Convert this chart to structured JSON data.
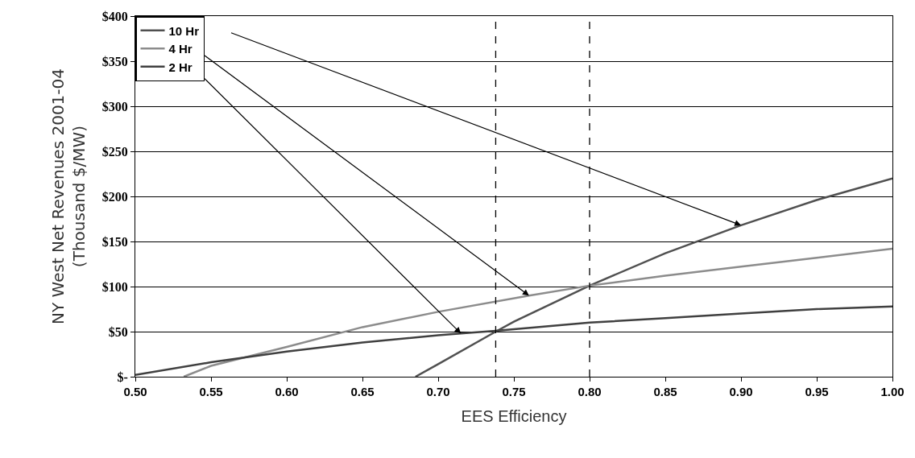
{
  "chart_data": {
    "type": "line",
    "xlabel": "EES Efficiency",
    "ylabel": "NY West Net Revenues 2001-04\n(Thousand $/MW)",
    "series": [
      {
        "name": "10 Hr",
        "color": "#505050",
        "x": [
          0.685,
          0.7,
          0.738,
          0.75,
          0.8,
          0.85,
          0.9,
          0.95,
          1.0
        ],
        "values": [
          0,
          14,
          50,
          61,
          101,
          137,
          168,
          196,
          220
        ]
      },
      {
        "name": "4 Hr",
        "color": "#8c8c8c",
        "x": [
          0.532,
          0.55,
          0.6,
          0.65,
          0.7,
          0.76,
          0.8,
          0.85,
          0.9,
          0.95,
          1.0
        ],
        "values": [
          0,
          12,
          33,
          55,
          72,
          90,
          101,
          112,
          122,
          132,
          142
        ]
      },
      {
        "name": "2 Hr",
        "color": "#404040",
        "x": [
          0.5,
          0.55,
          0.6,
          0.65,
          0.7,
          0.715,
          0.738,
          0.8,
          0.85,
          0.9,
          0.95,
          1.0
        ],
        "values": [
          2,
          16,
          28,
          38,
          46,
          48,
          51,
          60,
          65,
          70,
          75,
          78
        ]
      }
    ],
    "xlim": [
      0.5,
      1.0
    ],
    "xticks": [
      {
        "value": 0.5,
        "label": "0.50"
      },
      0.55,
      {
        "value": 0.6,
        "label": "0.60"
      },
      0.65,
      {
        "value": 0.7,
        "label": "0.70"
      },
      0.75,
      {
        "value": 0.8,
        "label": "0.80"
      },
      0.85,
      {
        "value": 0.9,
        "label": "0.90"
      },
      0.95,
      {
        "value": 1.0,
        "label": "1.00"
      }
    ],
    "ylim": [
      0,
      400
    ],
    "yticks": [
      {
        "value": 0,
        "label": "$-"
      },
      {
        "value": 50,
        "label": "$50"
      },
      {
        "value": 100,
        "label": "$100"
      },
      {
        "value": 150,
        "label": "$150"
      },
      {
        "value": 200,
        "label": "$200"
      },
      {
        "value": 250,
        "label": "$250"
      },
      {
        "value": 300,
        "label": "$300"
      },
      {
        "value": 350,
        "label": "$350"
      },
      {
        "value": 400,
        "label": "$400"
      }
    ],
    "ref_lines": [
      {
        "axis": "x",
        "value": 0.738,
        "color": "#000000",
        "line_style": "dashed"
      },
      {
        "axis": "x",
        "value": 0.8,
        "color": "#000000",
        "line_style": "dashed"
      }
    ],
    "grid": "y",
    "legend": "top left",
    "marker": "none",
    "line_style": "solid"
  }
}
